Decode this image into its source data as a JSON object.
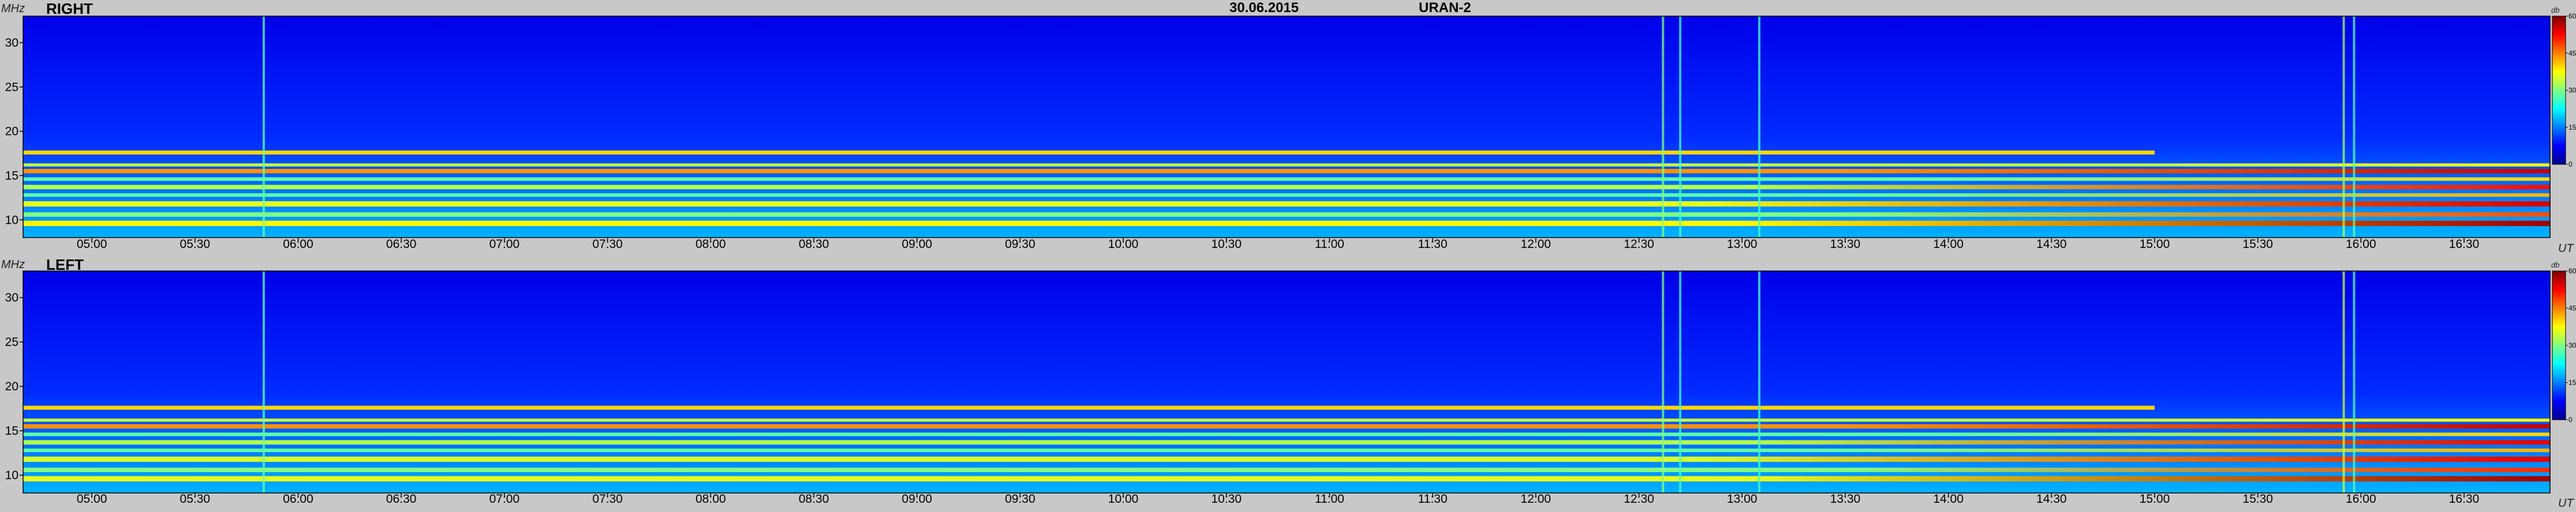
{
  "header": {
    "date": "30.06.2015",
    "instrument": "URAN-2"
  },
  "units": {
    "frequency": "MHz",
    "time": "UT",
    "intensity": "db"
  },
  "chart_data": [
    {
      "type": "heatmap",
      "title": "RIGHT",
      "xlabel": "UT",
      "ylabel": "MHz",
      "x_range": [
        "04:40",
        "16:55"
      ],
      "ylim": [
        8,
        33
      ],
      "x_ticks": [
        "05:00",
        "05:30",
        "06:00",
        "06:30",
        "07:00",
        "07:30",
        "08:00",
        "08:30",
        "09:00",
        "09:30",
        "10:00",
        "10:30",
        "11:00",
        "11:30",
        "12:00",
        "12:30",
        "13:00",
        "13:30",
        "14:00",
        "14:30",
        "15:00",
        "15:30",
        "16:00",
        "16:30"
      ],
      "y_ticks": [
        10,
        15,
        20,
        25,
        30
      ],
      "colorbar": {
        "label": "db",
        "min": 0,
        "max": 60,
        "ticks": [
          0,
          15,
          30,
          45,
          60
        ]
      },
      "colormap": [
        "#00008f",
        "#0000ff",
        "#0080ff",
        "#00ffff",
        "#80ff80",
        "#ffff00",
        "#ff8000",
        "#ff0000",
        "#800000"
      ],
      "background_db": 8,
      "bands": [
        {
          "freq": 9.6,
          "width": 0.6,
          "db": 38,
          "start": "04:40",
          "end": "16:55",
          "grow_to_db": 58,
          "grow_from": "13:00"
        },
        {
          "freq": 10.6,
          "width": 0.5,
          "db": 30,
          "start": "04:40",
          "end": "16:55",
          "grow_to_db": 48,
          "grow_from": "13:30"
        },
        {
          "freq": 11.8,
          "width": 0.6,
          "db": 36,
          "start": "04:40",
          "end": "16:55",
          "grow_to_db": 55,
          "grow_from": "12:45"
        },
        {
          "freq": 12.8,
          "width": 0.4,
          "db": 28,
          "start": "04:40",
          "end": "16:55",
          "grow_to_db": 42,
          "grow_from": "13:30"
        },
        {
          "freq": 13.7,
          "width": 0.5,
          "db": 33,
          "start": "04:40",
          "end": "16:55",
          "grow_to_db": 52,
          "grow_from": "13:00"
        },
        {
          "freq": 14.6,
          "width": 0.4,
          "db": 28,
          "start": "04:40",
          "end": "16:55",
          "grow_to_db": 40,
          "grow_from": "14:00"
        },
        {
          "freq": 15.5,
          "width": 0.5,
          "db": 44,
          "start": "04:40",
          "end": "16:55",
          "grow_to_db": 56,
          "grow_from": "13:30"
        },
        {
          "freq": 16.2,
          "width": 0.35,
          "db": 34,
          "start": "04:40",
          "end": "16:55",
          "grow_to_db": 38,
          "grow_from": "15:00"
        },
        {
          "freq": 17.6,
          "width": 0.45,
          "db": 40,
          "start": "04:40",
          "end": "15:00",
          "grow_to_db": 40,
          "grow_from": "15:00"
        }
      ],
      "vertical_bursts": [
        {
          "time": "05:50",
          "db": 28
        },
        {
          "time": "12:37",
          "db": 30
        },
        {
          "time": "12:42",
          "db": 26
        },
        {
          "time": "13:05",
          "db": 26
        },
        {
          "time": "15:55",
          "db": 32
        },
        {
          "time": "15:58",
          "db": 28
        }
      ]
    },
    {
      "type": "heatmap",
      "title": "LEFT",
      "xlabel": "UT",
      "ylabel": "MHz",
      "x_range": [
        "04:40",
        "16:55"
      ],
      "ylim": [
        8,
        33
      ],
      "x_ticks": [
        "05:00",
        "05:30",
        "06:00",
        "06:30",
        "07:00",
        "07:30",
        "08:00",
        "08:30",
        "09:00",
        "09:30",
        "10:00",
        "10:30",
        "11:00",
        "11:30",
        "12:00",
        "12:30",
        "13:00",
        "13:30",
        "14:00",
        "14:30",
        "15:00",
        "15:30",
        "16:00",
        "16:30"
      ],
      "y_ticks": [
        10,
        15,
        20,
        25,
        30
      ],
      "colorbar": {
        "label": "db",
        "min": 0,
        "max": 60,
        "ticks": [
          0,
          15,
          30,
          45,
          60
        ]
      },
      "colormap": [
        "#00008f",
        "#0000ff",
        "#0080ff",
        "#00ffff",
        "#80ff80",
        "#ffff00",
        "#ff8000",
        "#ff0000",
        "#800000"
      ],
      "background_db": 8,
      "bands": [
        {
          "freq": 9.6,
          "width": 0.6,
          "db": 36,
          "start": "04:40",
          "end": "16:55",
          "grow_to_db": 58,
          "grow_from": "13:00"
        },
        {
          "freq": 10.6,
          "width": 0.5,
          "db": 30,
          "start": "04:40",
          "end": "16:55",
          "grow_to_db": 50,
          "grow_from": "13:30"
        },
        {
          "freq": 11.8,
          "width": 0.6,
          "db": 35,
          "start": "04:40",
          "end": "16:55",
          "grow_to_db": 54,
          "grow_from": "12:45"
        },
        {
          "freq": 12.8,
          "width": 0.4,
          "db": 28,
          "start": "04:40",
          "end": "16:55",
          "grow_to_db": 42,
          "grow_from": "13:30"
        },
        {
          "freq": 13.7,
          "width": 0.5,
          "db": 33,
          "start": "04:40",
          "end": "16:55",
          "grow_to_db": 54,
          "grow_from": "13:00"
        },
        {
          "freq": 14.6,
          "width": 0.4,
          "db": 28,
          "start": "04:40",
          "end": "16:55",
          "grow_to_db": 40,
          "grow_from": "14:00"
        },
        {
          "freq": 15.5,
          "width": 0.5,
          "db": 44,
          "start": "04:40",
          "end": "16:55",
          "grow_to_db": 56,
          "grow_from": "13:30"
        },
        {
          "freq": 16.2,
          "width": 0.35,
          "db": 34,
          "start": "04:40",
          "end": "16:55",
          "grow_to_db": 38,
          "grow_from": "15:00"
        },
        {
          "freq": 17.6,
          "width": 0.45,
          "db": 40,
          "start": "04:40",
          "end": "15:00",
          "grow_to_db": 40,
          "grow_from": "15:00"
        }
      ],
      "vertical_bursts": [
        {
          "time": "05:50",
          "db": 28
        },
        {
          "time": "12:37",
          "db": 30
        },
        {
          "time": "12:42",
          "db": 26
        },
        {
          "time": "13:05",
          "db": 26
        },
        {
          "time": "15:55",
          "db": 34
        },
        {
          "time": "15:58",
          "db": 28
        }
      ]
    }
  ]
}
